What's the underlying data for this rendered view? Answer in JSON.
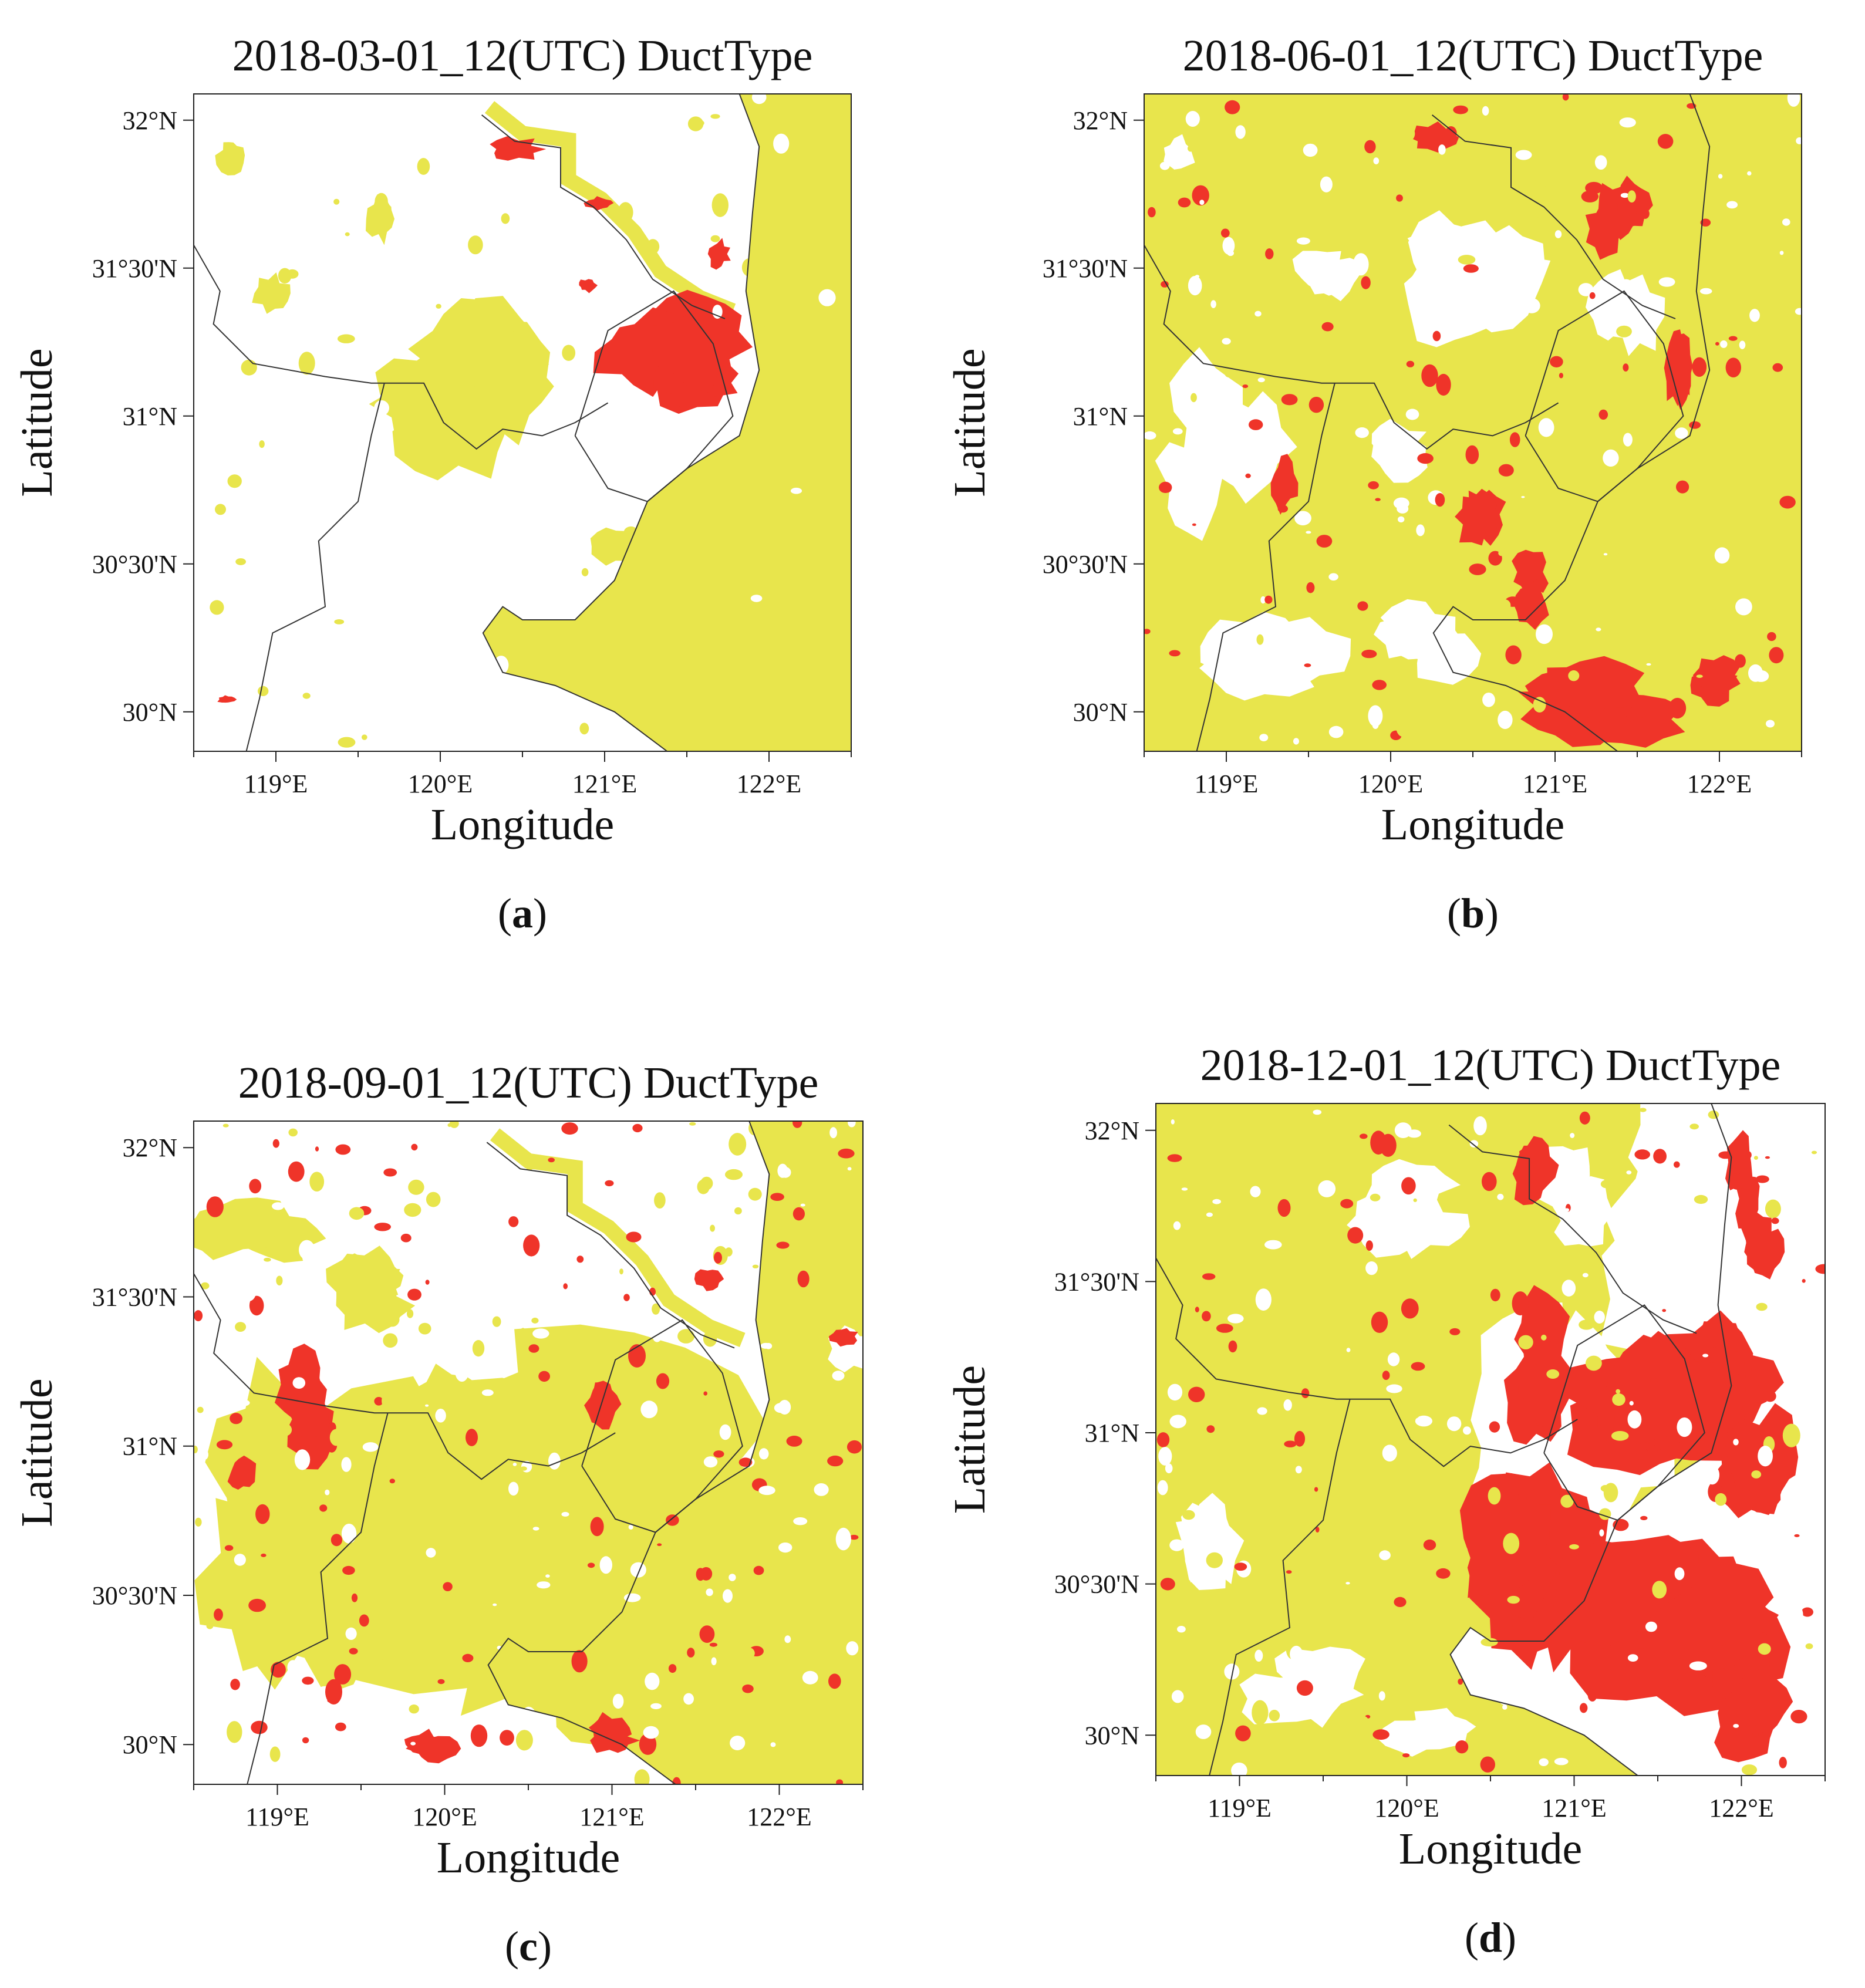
{
  "colors": {
    "no_duct": "#ffffff",
    "surface_duct": "#e8e54c",
    "elevated_duct": "#ef3429",
    "boundary": "#333333"
  },
  "chart_data": [
    {
      "type": "heatmap",
      "panel": "a",
      "title": "2018-03-01_12(UTC) DuctType",
      "xlabel": "Longitude",
      "ylabel": "Latitude",
      "x_ticks": [
        "119°E",
        "120°E",
        "121°E",
        "122°E"
      ],
      "y_ticks": [
        "32°N",
        "31°30'N",
        "31°N",
        "30°30'N",
        "30°N"
      ],
      "xlim": [
        118.5,
        122.5
      ],
      "ylim": [
        29.9,
        32.1
      ],
      "dominant": "white",
      "caption": "(a)"
    },
    {
      "type": "heatmap",
      "panel": "b",
      "title": "2018-06-01_12(UTC) DuctType",
      "xlabel": "Longitude",
      "ylabel": "Latitude",
      "x_ticks": [
        "119°E",
        "120°E",
        "121°E",
        "122°E"
      ],
      "y_ticks": [
        "32°N",
        "31°30'N",
        "31°N",
        "30°30'N",
        "30°N"
      ],
      "xlim": [
        118.5,
        122.5
      ],
      "ylim": [
        29.9,
        32.1
      ],
      "dominant": "yellow",
      "caption": "(b)"
    },
    {
      "type": "heatmap",
      "panel": "c",
      "title": "2018-09-01_12(UTC) DuctType",
      "xlabel": "Longitude",
      "ylabel": "Latitude",
      "x_ticks": [
        "119°E",
        "120°E",
        "121°E",
        "122°E"
      ],
      "y_ticks": [
        "32°N",
        "31°30'N",
        "31°N",
        "30°30'N",
        "30°N"
      ],
      "xlim": [
        118.5,
        122.5
      ],
      "ylim": [
        29.9,
        32.1
      ],
      "dominant": "mixed",
      "caption": "(c)"
    },
    {
      "type": "heatmap",
      "panel": "d",
      "title": "2018-12-01_12(UTC) DuctType",
      "xlabel": "Longitude",
      "ylabel": "Latitude",
      "x_ticks": [
        "119°E",
        "120°E",
        "121°E",
        "122°E"
      ],
      "y_ticks": [
        "32°N",
        "31°30'N",
        "31°N",
        "30°30'N",
        "30°N"
      ],
      "xlim": [
        118.5,
        122.5
      ],
      "ylim": [
        29.9,
        32.1
      ],
      "dominant": "red-east",
      "caption": "(d)"
    }
  ]
}
